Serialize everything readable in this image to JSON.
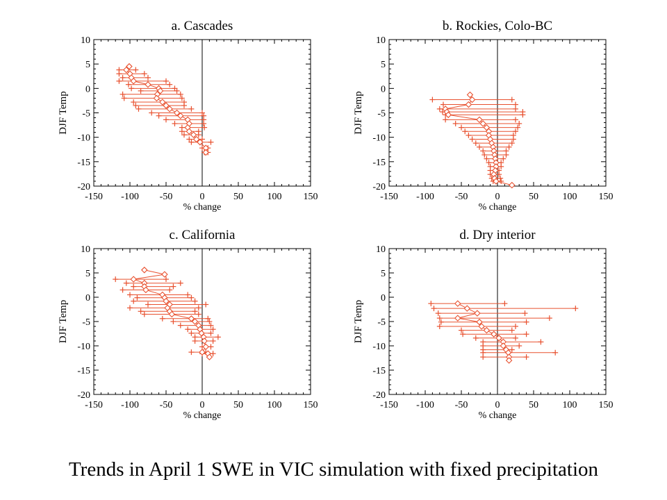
{
  "caption": "Trends in April 1 SWE in VIC simulation with fixed precipitation",
  "colors": {
    "series": "#e8502e",
    "axis": "#000000"
  },
  "chart_data": [
    {
      "type": "scatter",
      "title": "a. Cascades",
      "xlabel": "% change",
      "ylabel": "DJF Temp",
      "xlim": [
        -150,
        150
      ],
      "ylim": [
        -20,
        10
      ],
      "xticks": [
        "-150",
        "-100",
        "-50",
        "0",
        "50",
        "100",
        "150"
      ],
      "yticks": [
        "10",
        "5",
        "0",
        "-5",
        "-10",
        "-15",
        "-20"
      ],
      "grid": false,
      "points": [
        {
          "y": 4.5,
          "x": -101,
          "lo": -101,
          "hi": -101
        },
        {
          "y": 3.8,
          "x": -105,
          "lo": -115,
          "hi": -92
        },
        {
          "y": 3.0,
          "x": -100,
          "lo": -115,
          "hi": -80
        },
        {
          "y": 2.2,
          "x": -98,
          "lo": -110,
          "hi": -75
        },
        {
          "y": 1.5,
          "x": -95,
          "lo": -115,
          "hi": -50
        },
        {
          "y": 0.8,
          "x": -75,
          "lo": -102,
          "hi": -45
        },
        {
          "y": 0.0,
          "x": -60,
          "lo": -98,
          "hi": -38
        },
        {
          "y": -0.5,
          "x": -58,
          "lo": -85,
          "hi": -35
        },
        {
          "y": -1.2,
          "x": -62,
          "lo": -110,
          "hi": -30
        },
        {
          "y": -2.0,
          "x": -63,
          "lo": -108,
          "hi": -28
        },
        {
          "y": -2.8,
          "x": -55,
          "lo": -95,
          "hi": -25
        },
        {
          "y": -3.5,
          "x": -50,
          "lo": -92,
          "hi": -25
        },
        {
          "y": -4.2,
          "x": -45,
          "lo": -88,
          "hi": -15
        },
        {
          "y": -5.0,
          "x": -35,
          "lo": -70,
          "hi": 0
        },
        {
          "y": -5.6,
          "x": -30,
          "lo": -60,
          "hi": 2
        },
        {
          "y": -6.4,
          "x": -20,
          "lo": -50,
          "hi": 2
        },
        {
          "y": -7.2,
          "x": -18,
          "lo": -38,
          "hi": 2
        },
        {
          "y": -8.0,
          "x": -20,
          "lo": -28,
          "hi": 3
        },
        {
          "y": -8.8,
          "x": -18,
          "lo": -28,
          "hi": -5
        },
        {
          "y": -9.5,
          "x": -12,
          "lo": -25,
          "hi": -5
        },
        {
          "y": -10.4,
          "x": -8,
          "lo": -18,
          "hi": 0
        },
        {
          "y": -11.0,
          "x": -3,
          "lo": -15,
          "hi": 12
        },
        {
          "y": -12.2,
          "x": 5,
          "lo": 0,
          "hi": 8
        },
        {
          "y": -13.1,
          "x": 5,
          "lo": 3,
          "hi": 8
        }
      ]
    },
    {
      "type": "scatter",
      "title": "b. Rockies, Colo-BC",
      "xlabel": "% change",
      "ylabel": "DJF Temp",
      "xlim": [
        -150,
        150
      ],
      "ylim": [
        -20,
        10
      ],
      "xticks": [
        "-150",
        "-100",
        "-50",
        "0",
        "50",
        "100",
        "150"
      ],
      "yticks": [
        "10",
        "5",
        "0",
        "-5",
        "-10",
        "-15",
        "-20"
      ],
      "grid": false,
      "points": [
        {
          "y": -1.3,
          "x": -38,
          "lo": -38,
          "hi": -38
        },
        {
          "y": -2.3,
          "x": -35,
          "lo": -90,
          "hi": 20
        },
        {
          "y": -3.3,
          "x": -40,
          "lo": -75,
          "hi": 25
        },
        {
          "y": -4.2,
          "x": -72,
          "lo": -80,
          "hi": 25
        },
        {
          "y": -4.8,
          "x": -70,
          "lo": -76,
          "hi": 35
        },
        {
          "y": -5.4,
          "x": -68,
          "lo": -72,
          "hi": 35
        },
        {
          "y": -6.4,
          "x": -25,
          "lo": -72,
          "hi": 25
        },
        {
          "y": -7.2,
          "x": -20,
          "lo": -58,
          "hi": 30
        },
        {
          "y": -8.0,
          "x": -15,
          "lo": -50,
          "hi": 28
        },
        {
          "y": -8.8,
          "x": -12,
          "lo": -45,
          "hi": 25
        },
        {
          "y": -9.6,
          "x": -12,
          "lo": -40,
          "hi": 22
        },
        {
          "y": -10.4,
          "x": -10,
          "lo": -35,
          "hi": 22
        },
        {
          "y": -11.2,
          "x": -8,
          "lo": -30,
          "hi": 20
        },
        {
          "y": -12.0,
          "x": -6,
          "lo": -25,
          "hi": 16
        },
        {
          "y": -12.8,
          "x": -5,
          "lo": -20,
          "hi": 12
        },
        {
          "y": -13.6,
          "x": -4,
          "lo": -18,
          "hi": 12
        },
        {
          "y": -14.4,
          "x": -3,
          "lo": -15,
          "hi": 8
        },
        {
          "y": -15.2,
          "x": -2,
          "lo": -12,
          "hi": 5
        },
        {
          "y": -16.0,
          "x": -2,
          "lo": -10,
          "hi": 5
        },
        {
          "y": -16.8,
          "x": -3,
          "lo": -10,
          "hi": 2
        },
        {
          "y": -17.6,
          "x": -5,
          "lo": -10,
          "hi": 2
        },
        {
          "y": -18.4,
          "x": -4,
          "lo": -8,
          "hi": 4
        },
        {
          "y": -19.0,
          "x": -2,
          "lo": -6,
          "hi": 5
        },
        {
          "y": -19.8,
          "x": 20,
          "lo": 20,
          "hi": 20
        }
      ]
    },
    {
      "type": "scatter",
      "title": "c.  California",
      "xlabel": "% change",
      "ylabel": "DJF Temp",
      "xlim": [
        -150,
        150
      ],
      "ylim": [
        -20,
        10
      ],
      "xticks": [
        "-150",
        "-100",
        "-50",
        "0",
        "50",
        "100",
        "150"
      ],
      "yticks": [
        "10",
        "5",
        "0",
        "-5",
        "-10",
        "-15",
        "-20"
      ],
      "grid": false,
      "points": [
        {
          "y": 5.6,
          "x": -80,
          "lo": -80,
          "hi": -80
        },
        {
          "y": 4.7,
          "x": -52,
          "lo": -52,
          "hi": -52
        },
        {
          "y": 3.7,
          "x": -95,
          "lo": -120,
          "hi": -50
        },
        {
          "y": 2.9,
          "x": -80,
          "lo": -105,
          "hi": -30
        },
        {
          "y": 2.2,
          "x": -80,
          "lo": -95,
          "hi": -40
        },
        {
          "y": 1.5,
          "x": -78,
          "lo": -110,
          "hi": -45
        },
        {
          "y": 0.5,
          "x": -55,
          "lo": -100,
          "hi": -20
        },
        {
          "y": -0.1,
          "x": -52,
          "lo": -90,
          "hi": -15
        },
        {
          "y": -0.8,
          "x": -50,
          "lo": -95,
          "hi": -10
        },
        {
          "y": -1.5,
          "x": -45,
          "lo": -75,
          "hi": 5
        },
        {
          "y": -2.2,
          "x": -48,
          "lo": -100,
          "hi": -5
        },
        {
          "y": -2.9,
          "x": -45,
          "lo": -85,
          "hi": -10
        },
        {
          "y": -3.5,
          "x": -42,
          "lo": -80,
          "hi": -5
        },
        {
          "y": -4.4,
          "x": -15,
          "lo": -55,
          "hi": 8
        },
        {
          "y": -5.0,
          "x": -10,
          "lo": -40,
          "hi": 10
        },
        {
          "y": -5.8,
          "x": -5,
          "lo": -30,
          "hi": 12
        },
        {
          "y": -6.6,
          "x": -3,
          "lo": -20,
          "hi": 15
        },
        {
          "y": -7.4,
          "x": -1,
          "lo": -15,
          "hi": 12
        },
        {
          "y": -8.2,
          "x": 2,
          "lo": -10,
          "hi": 22
        },
        {
          "y": -9.0,
          "x": 3,
          "lo": -10,
          "hi": 15
        },
        {
          "y": -10.2,
          "x": 5,
          "lo": 0,
          "hi": 12
        },
        {
          "y": -11.3,
          "x": 0,
          "lo": -15,
          "hi": 5
        },
        {
          "y": -11.6,
          "x": 8,
          "lo": 0,
          "hi": 15
        },
        {
          "y": -12.3,
          "x": 10,
          "lo": 10,
          "hi": 10
        }
      ]
    },
    {
      "type": "scatter",
      "title": "d. Dry interior",
      "xlabel": "% change",
      "ylabel": "DJF Temp",
      "xlim": [
        -150,
        150
      ],
      "ylim": [
        -20,
        10
      ],
      "xticks": [
        "-150",
        "-100",
        "-50",
        "0",
        "50",
        "100",
        "150"
      ],
      "yticks": [
        "10",
        "5",
        "0",
        "-5",
        "-10",
        "-15",
        "-20"
      ],
      "grid": false,
      "points": [
        {
          "y": -1.3,
          "x": -55,
          "lo": -92,
          "hi": 10
        },
        {
          "y": -2.3,
          "x": -42,
          "lo": -88,
          "hi": 108
        },
        {
          "y": -3.3,
          "x": -28,
          "lo": -82,
          "hi": 38
        },
        {
          "y": -4.3,
          "x": -55,
          "lo": -80,
          "hi": 72
        },
        {
          "y": -5.1,
          "x": -25,
          "lo": -78,
          "hi": 40
        },
        {
          "y": -6.0,
          "x": -22,
          "lo": -80,
          "hi": 25
        },
        {
          "y": -6.8,
          "x": -15,
          "lo": -50,
          "hi": 20
        },
        {
          "y": -7.6,
          "x": -5,
          "lo": -48,
          "hi": 40
        },
        {
          "y": -8.4,
          "x": 2,
          "lo": -30,
          "hi": 25
        },
        {
          "y": -9.2,
          "x": 8,
          "lo": -20,
          "hi": 60
        },
        {
          "y": -10.0,
          "x": 8,
          "lo": -20,
          "hi": 30
        },
        {
          "y": -10.8,
          "x": 12,
          "lo": -20,
          "hi": 20
        },
        {
          "y": -11.4,
          "x": 15,
          "lo": -20,
          "hi": 80
        },
        {
          "y": -12.3,
          "x": 16,
          "lo": -20,
          "hi": 40
        },
        {
          "y": -13.0,
          "x": 16,
          "lo": 16,
          "hi": 16
        }
      ]
    }
  ]
}
